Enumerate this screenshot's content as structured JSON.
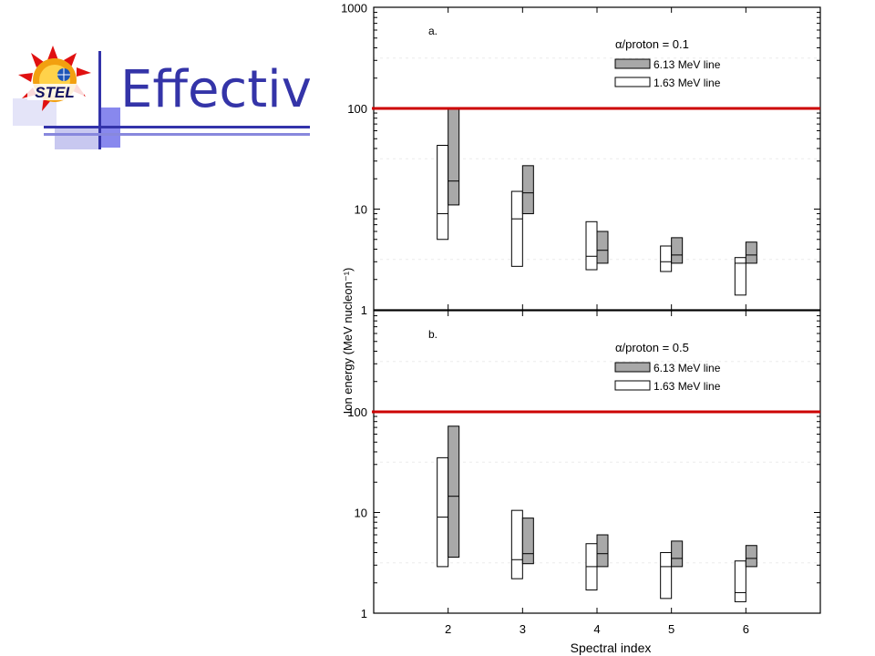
{
  "slide": {
    "title": "Effective e",
    "logo_text": "STEL"
  },
  "colors": {
    "title": "#3434a8",
    "threshold_line": "#cc0000",
    "filled_box": "#a8a8a8",
    "open_box": "#ffffff",
    "frame": "#000000"
  },
  "chart_data": [
    {
      "type": "box-range",
      "panel_label": "a.",
      "legend_title": "α/proton = 0.1",
      "xlabel": "Spectral index",
      "ylabel": "Ion energy (MeV nucleon⁻¹)",
      "yscale": "log",
      "ylim": [
        1,
        1000
      ],
      "y_ticks": [
        "1",
        "10",
        "100",
        "1000"
      ],
      "categories": [
        "2",
        "3",
        "4",
        "5",
        "6"
      ],
      "xlim": [
        1,
        7
      ],
      "threshold": 100,
      "series": [
        {
          "name": "1.63 MeV line",
          "fill": "open",
          "boxes": [
            {
              "x": 2,
              "low": 5,
              "mid": 9,
              "high": 43
            },
            {
              "x": 3,
              "low": 2.7,
              "mid": 8,
              "high": 15
            },
            {
              "x": 4,
              "low": 2.5,
              "mid": 3.4,
              "high": 7.5
            },
            {
              "x": 5,
              "low": 2.4,
              "mid": 3,
              "high": 4.3
            },
            {
              "x": 6,
              "low": 1.4,
              "mid": 2.9,
              "high": 3.3
            }
          ]
        },
        {
          "name": "6.13 MeV line",
          "fill": "filled",
          "boxes": [
            {
              "x": 2,
              "low": 11,
              "mid": 19,
              "high": 100
            },
            {
              "x": 3,
              "low": 9,
              "mid": 14.5,
              "high": 27
            },
            {
              "x": 4,
              "low": 2.9,
              "mid": 3.9,
              "high": 6
            },
            {
              "x": 5,
              "low": 2.9,
              "mid": 3.5,
              "high": 5.2
            },
            {
              "x": 6,
              "low": 2.9,
              "mid": 3.5,
              "high": 4.7
            }
          ]
        }
      ]
    },
    {
      "type": "box-range",
      "panel_label": "b.",
      "legend_title": "α/proton = 0.5",
      "xlabel": "Spectral index",
      "ylabel": "Ion energy (MeV nucleon⁻¹)",
      "yscale": "log",
      "ylim": [
        1,
        1000
      ],
      "y_ticks": [
        "1",
        "10",
        "100"
      ],
      "categories": [
        "2",
        "3",
        "4",
        "5",
        "6"
      ],
      "xlim": [
        1,
        7
      ],
      "threshold": 100,
      "series": [
        {
          "name": "1.63 MeV line",
          "fill": "open",
          "boxes": [
            {
              "x": 2,
              "low": 2.9,
              "mid": 9,
              "high": 35
            },
            {
              "x": 3,
              "low": 2.2,
              "mid": 3.4,
              "high": 10.5
            },
            {
              "x": 4,
              "low": 1.7,
              "mid": 2.9,
              "high": 4.9
            },
            {
              "x": 5,
              "low": 1.4,
              "mid": 2.9,
              "high": 4
            },
            {
              "x": 6,
              "low": 1.3,
              "mid": 1.6,
              "high": 3.3
            }
          ]
        },
        {
          "name": "6.13 MeV line",
          "fill": "filled",
          "boxes": [
            {
              "x": 2,
              "low": 3.6,
              "mid": 14.5,
              "high": 72
            },
            {
              "x": 3,
              "low": 3.1,
              "mid": 3.9,
              "high": 8.8
            },
            {
              "x": 4,
              "low": 2.9,
              "mid": 3.9,
              "high": 6
            },
            {
              "x": 5,
              "low": 2.9,
              "mid": 3.5,
              "high": 5.2
            },
            {
              "x": 6,
              "low": 2.9,
              "mid": 3.5,
              "high": 4.7
            }
          ]
        }
      ]
    }
  ]
}
